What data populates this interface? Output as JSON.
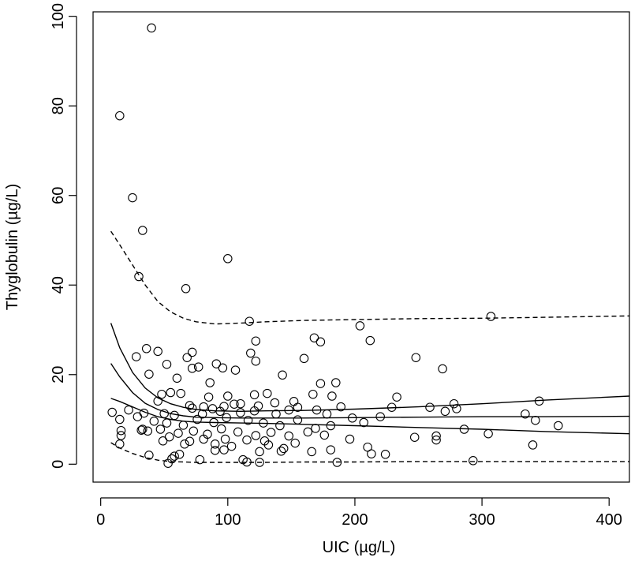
{
  "chart_data": {
    "type": "scatter",
    "title": "",
    "xlabel": "UIC (µg/L)",
    "ylabel": "Thyglobulin (µg/L)",
    "xlim": [
      -6,
      416
    ],
    "ylim": [
      -4,
      101
    ],
    "xticks": [
      0,
      100,
      200,
      300,
      400
    ],
    "yticks": [
      0,
      20,
      40,
      60,
      80,
      100
    ],
    "grid": false,
    "legend": "none",
    "points": [
      [
        40,
        97.4
      ],
      [
        15,
        77.8
      ],
      [
        25,
        59.5
      ],
      [
        33,
        52.2
      ],
      [
        100,
        45.9
      ],
      [
        30,
        41.9
      ],
      [
        67,
        39.2
      ],
      [
        307,
        33
      ],
      [
        117,
        31.9
      ],
      [
        204,
        30.9
      ],
      [
        168,
        28.2
      ],
      [
        173,
        27.3
      ],
      [
        212,
        27.6
      ],
      [
        122,
        27.5
      ],
      [
        36,
        25.8
      ],
      [
        45,
        25.2
      ],
      [
        72,
        25
      ],
      [
        118,
        24.8
      ],
      [
        28,
        24
      ],
      [
        248,
        23.8
      ],
      [
        68,
        23.8
      ],
      [
        160,
        23.6
      ],
      [
        122,
        23
      ],
      [
        91,
        22.4
      ],
      [
        52,
        22.3
      ],
      [
        77,
        21.7
      ],
      [
        96,
        21.5
      ],
      [
        269,
        21.3
      ],
      [
        72,
        21.4
      ],
      [
        106,
        21
      ],
      [
        38,
        20.1
      ],
      [
        143,
        19.9
      ],
      [
        60,
        19.2
      ],
      [
        86,
        18.2
      ],
      [
        185,
        18.2
      ],
      [
        173,
        18
      ],
      [
        55,
        16
      ],
      [
        63,
        15.8
      ],
      [
        48,
        15.6
      ],
      [
        167,
        15.6
      ],
      [
        131,
        15.8
      ],
      [
        121,
        15.5
      ],
      [
        182,
        15.2
      ],
      [
        100,
        15.2
      ],
      [
        233,
        15
      ],
      [
        85,
        15
      ],
      [
        45,
        14.1
      ],
      [
        345,
        14.1
      ],
      [
        152,
        14
      ],
      [
        137,
        13.7
      ],
      [
        110,
        13.5
      ],
      [
        278,
        13.5
      ],
      [
        70,
        13.1
      ],
      [
        105,
        13.4
      ],
      [
        81,
        12.8
      ],
      [
        97,
        12.9
      ],
      [
        124,
        13
      ],
      [
        189,
        12.8
      ],
      [
        229,
        12.7
      ],
      [
        259,
        12.7
      ],
      [
        9,
        11.6
      ],
      [
        22,
        12.1
      ],
      [
        34,
        11.4
      ],
      [
        50,
        11.3
      ],
      [
        58,
        10.9
      ],
      [
        72,
        12.5
      ],
      [
        80,
        11.2
      ],
      [
        88,
        12.4
      ],
      [
        94,
        11.8
      ],
      [
        110,
        11.5
      ],
      [
        121,
        11.9
      ],
      [
        138,
        11.2
      ],
      [
        148,
        12.1
      ],
      [
        155,
        12.7
      ],
      [
        170,
        12.1
      ],
      [
        178,
        11.2
      ],
      [
        198,
        10.3
      ],
      [
        220,
        10.6
      ],
      [
        271,
        11.8
      ],
      [
        280,
        12.4
      ],
      [
        334,
        11.2
      ],
      [
        342,
        9.8
      ],
      [
        15,
        10
      ],
      [
        29,
        10.6
      ],
      [
        42,
        9.6
      ],
      [
        52,
        9.2
      ],
      [
        65,
        8.7
      ],
      [
        76,
        10
      ],
      [
        89,
        9.3
      ],
      [
        99,
        10.4
      ],
      [
        116,
        9.8
      ],
      [
        128,
        9.2
      ],
      [
        141,
        8.6
      ],
      [
        155,
        9.9
      ],
      [
        169,
        8
      ],
      [
        181,
        8.6
      ],
      [
        207,
        9.3
      ],
      [
        360,
        8.6
      ],
      [
        16,
        7.5
      ],
      [
        32,
        7.6
      ],
      [
        47,
        7.8
      ],
      [
        61,
        6.9
      ],
      [
        73,
        7.4
      ],
      [
        84,
        6.7
      ],
      [
        95,
        7.9
      ],
      [
        108,
        7.2
      ],
      [
        122,
        6.4
      ],
      [
        134,
        7.1
      ],
      [
        148,
        6.3
      ],
      [
        163,
        7.2
      ],
      [
        176,
        6.5
      ],
      [
        286,
        7.8
      ],
      [
        305,
        6.8
      ],
      [
        16,
        6.4
      ],
      [
        37,
        7.4
      ],
      [
        54,
        6.1
      ],
      [
        70,
        5.1
      ],
      [
        81,
        5.6
      ],
      [
        98,
        5.6
      ],
      [
        115,
        5.4
      ],
      [
        129,
        5.2
      ],
      [
        153,
        4.7
      ],
      [
        196,
        5.6
      ],
      [
        247,
        6
      ],
      [
        264,
        6.3
      ],
      [
        340,
        4.3
      ],
      [
        15,
        4.5
      ],
      [
        33,
        7.8
      ],
      [
        49,
        5.2
      ],
      [
        66,
        4.5
      ],
      [
        90,
        4.5
      ],
      [
        103,
        4
      ],
      [
        132,
        4.3
      ],
      [
        144,
        3.5
      ],
      [
        181,
        3.2
      ],
      [
        210,
        3.8
      ],
      [
        264,
        5.4
      ],
      [
        90,
        3.1
      ],
      [
        97,
        3.2
      ],
      [
        125,
        2.8
      ],
      [
        142,
        2.9
      ],
      [
        166,
        2.8
      ],
      [
        213,
        2.3
      ],
      [
        224,
        2.2
      ],
      [
        38,
        2
      ],
      [
        58,
        1.8
      ],
      [
        62,
        2.2
      ],
      [
        78,
        1
      ],
      [
        112,
        1
      ],
      [
        115,
        0.5
      ],
      [
        125,
        0.4
      ],
      [
        186,
        0.4
      ],
      [
        293,
        0.8
      ],
      [
        53,
        0.2
      ],
      [
        56,
        1.2
      ]
    ],
    "lines": [
      {
        "style": "dashed",
        "x": [
          8,
          15,
          25,
          35,
          45,
          55,
          65,
          75,
          90,
          110,
          130,
          160,
          200,
          250,
          300,
          350,
          416
        ],
        "y": [
          52,
          49,
          44.5,
          40,
          36.3,
          34,
          32.6,
          31.8,
          31.3,
          31.5,
          31.8,
          32.1,
          32.3,
          32.5,
          32.6,
          32.8,
          33.1
        ]
      },
      {
        "style": "solid",
        "x": [
          8,
          15,
          25,
          35,
          45,
          55,
          65,
          75,
          90,
          110,
          130,
          160,
          200,
          250,
          300,
          350,
          416
        ],
        "y": [
          31.5,
          26,
          20.5,
          17,
          14.8,
          13.5,
          12.7,
          12.2,
          11.9,
          11.8,
          11.9,
          12,
          12.3,
          12.8,
          13.5,
          14.3,
          15.2
        ]
      },
      {
        "style": "solid",
        "x": [
          8,
          15,
          25,
          35,
          45,
          55,
          65,
          75,
          90,
          110,
          130,
          160,
          200,
          250,
          300,
          350,
          416
        ],
        "y": [
          22.5,
          19.5,
          16,
          13.6,
          12.2,
          11.3,
          10.8,
          10.5,
          10.4,
          10.3,
          10.3,
          10.3,
          10.4,
          10.5,
          10.6,
          10.6,
          10.7
        ]
      },
      {
        "style": "solid",
        "x": [
          8,
          15,
          25,
          35,
          45,
          55,
          65,
          75,
          90,
          110,
          130,
          160,
          200,
          250,
          300,
          350,
          416
        ],
        "y": [
          14.7,
          14,
          12.8,
          11.6,
          10.6,
          10,
          9.6,
          9.4,
          9.3,
          9.2,
          9.1,
          8.9,
          8.6,
          8.2,
          7.8,
          7.3,
          6.8
        ]
      },
      {
        "style": "dashed",
        "x": [
          8,
          15,
          25,
          35,
          45,
          55,
          65,
          75,
          90,
          110,
          130,
          160,
          200,
          250,
          300,
          350,
          416
        ],
        "y": [
          4.8,
          3.6,
          2.4,
          1.5,
          0.9,
          0.6,
          0.5,
          0.4,
          0.4,
          0.4,
          0.4,
          0.5,
          0.5,
          0.6,
          0.6,
          0.6,
          0.6
        ]
      }
    ]
  }
}
